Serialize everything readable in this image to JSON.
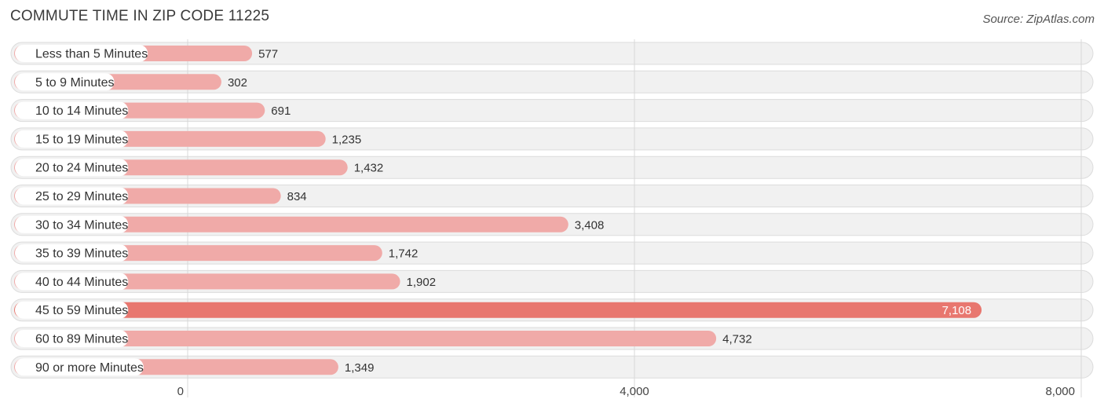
{
  "header": {
    "title": "COMMUTE TIME IN ZIP CODE 11225",
    "source": "Source: ZipAtlas.com"
  },
  "colors": {
    "bar_normal": "#f0aaa8",
    "bar_highlight": "#e8776f"
  },
  "chart_data": {
    "type": "bar",
    "orientation": "horizontal",
    "title": "COMMUTE TIME IN ZIP CODE 11225",
    "xlabel": "",
    "ylabel": "",
    "xlim": [
      0,
      8000
    ],
    "x_ticks": [
      0,
      4000,
      8000
    ],
    "x_tick_labels": [
      "0",
      "4,000",
      "8,000"
    ],
    "grid": true,
    "highlight_index": 9,
    "categories": [
      "Less than 5 Minutes",
      "5 to 9 Minutes",
      "10 to 14 Minutes",
      "15 to 19 Minutes",
      "20 to 24 Minutes",
      "25 to 29 Minutes",
      "30 to 34 Minutes",
      "35 to 39 Minutes",
      "40 to 44 Minutes",
      "45 to 59 Minutes",
      "60 to 89 Minutes",
      "90 or more Minutes"
    ],
    "values": [
      577,
      302,
      691,
      1235,
      1432,
      834,
      3408,
      1742,
      1902,
      7108,
      4732,
      1349
    ],
    "value_labels": [
      "577",
      "302",
      "691",
      "1,235",
      "1,432",
      "834",
      "3,408",
      "1,742",
      "1,902",
      "7,108",
      "4,732",
      "1,349"
    ]
  }
}
